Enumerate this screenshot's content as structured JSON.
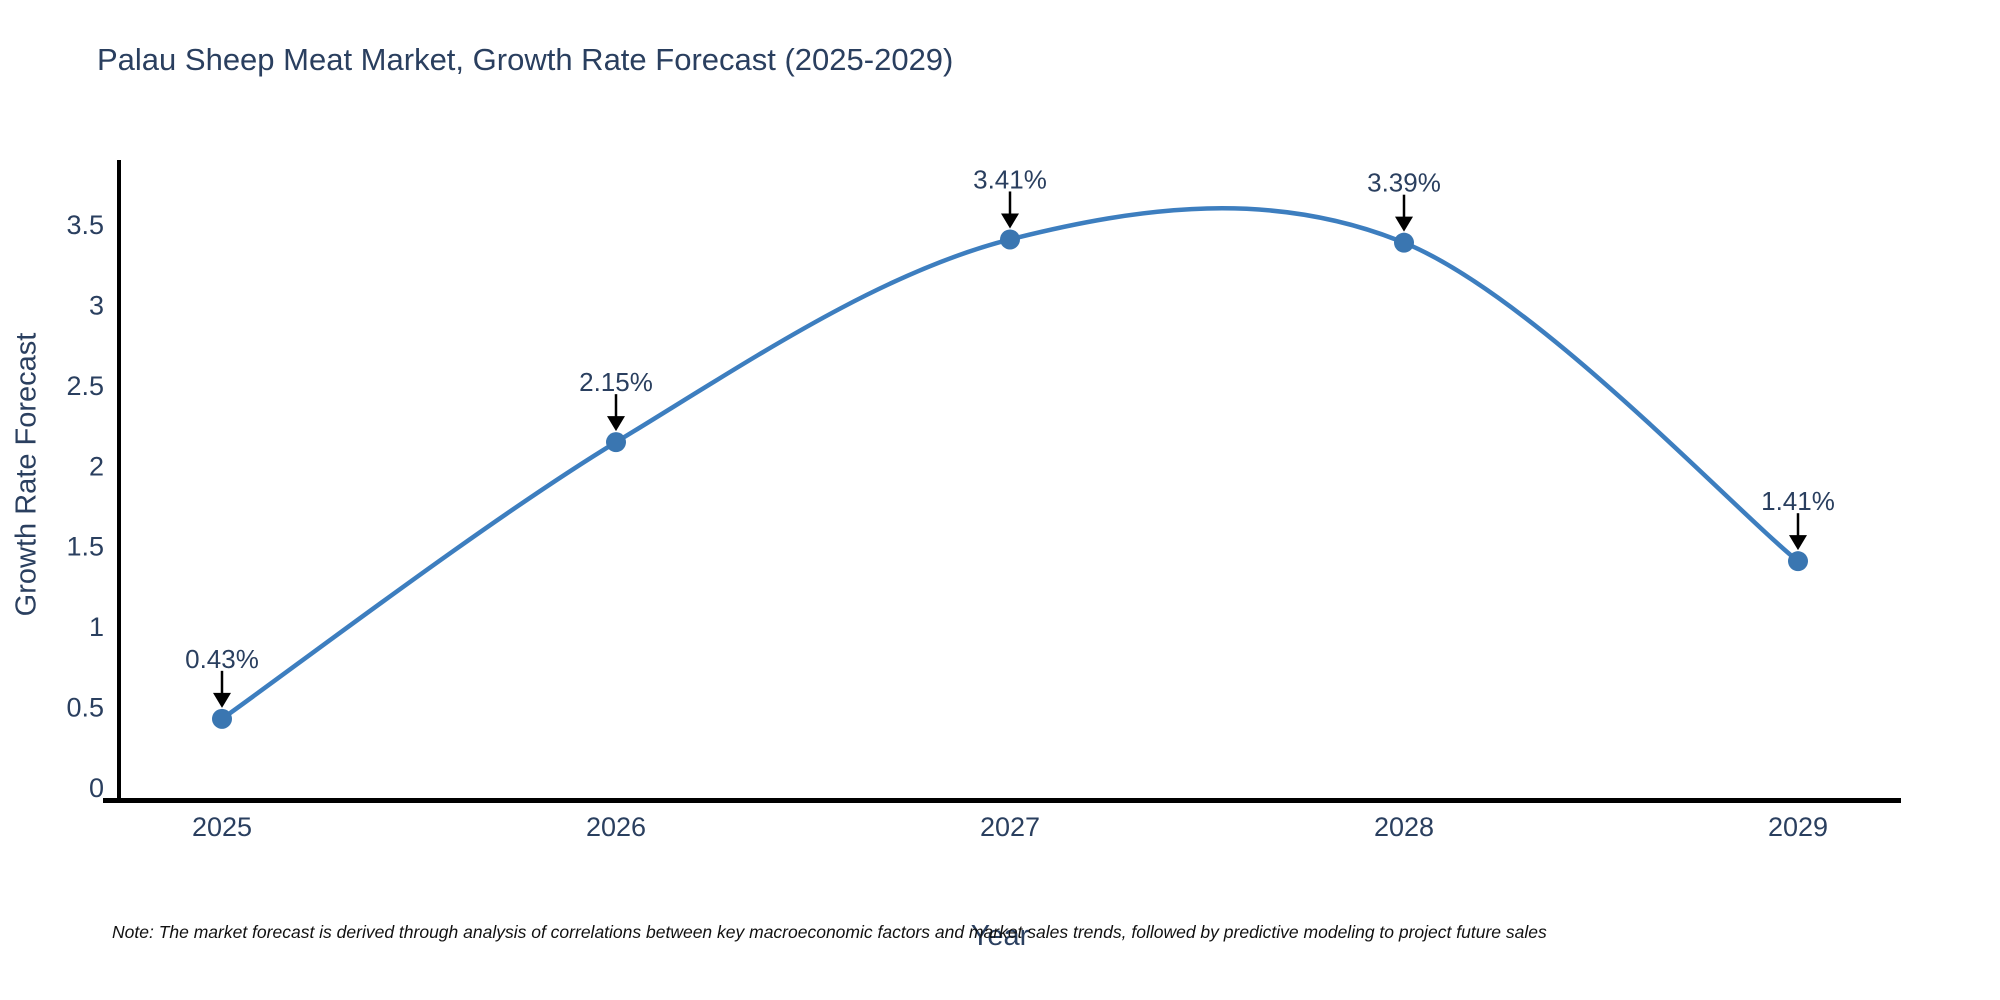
{
  "page": {
    "background_color": "#ffffff"
  },
  "chart_data": {
    "type": "line",
    "title": "Palau Sheep Meat Market, Growth Rate Forecast (2025-2029)",
    "xlabel": "Year",
    "ylabel": "Growth Rate Forecast",
    "categories": [
      "2025",
      "2026",
      "2027",
      "2028",
      "2029"
    ],
    "series": [
      {
        "name": "Growth Rate Forecast",
        "values": [
          0.43,
          2.15,
          3.41,
          3.39,
          1.41
        ]
      }
    ],
    "point_labels": [
      "0.43%",
      "2.15%",
      "3.41%",
      "3.39%",
      "1.41%"
    ],
    "yticks": [
      "0",
      "0.5",
      "1",
      "1.5",
      "2",
      "2.5",
      "3",
      "3.5"
    ],
    "ytick_values": [
      0,
      0.5,
      1,
      1.5,
      2,
      2.5,
      3,
      3.5
    ],
    "ylim": [
      0,
      3.9
    ],
    "line_shape": "spline",
    "grid": false,
    "legend": "none",
    "colors": {
      "line": "#3d7ebf",
      "marker": "#3a76b1",
      "axis": "#000000",
      "tick_text": "#2a3f5f",
      "title_text": "#2a3f5f",
      "annotation_text": "#2a3f5f",
      "annotation_arrow": "#000000"
    }
  },
  "note": {
    "text": "Note: The market forecast is derived through analysis of correlations between key macroeconomic factors and market sales trends, followed by predictive modeling to project future sales"
  }
}
